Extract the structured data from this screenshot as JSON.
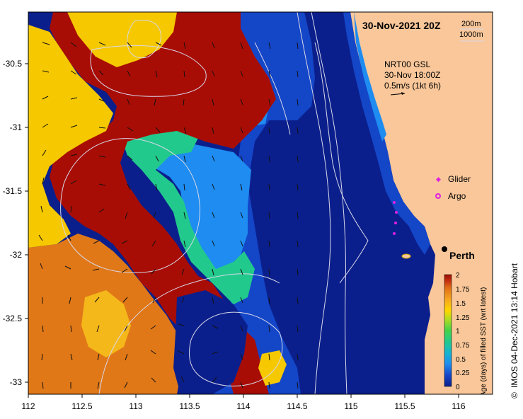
{
  "title": "30-Nov-2021 20Z",
  "contours": [
    "200m",
    "1000m"
  ],
  "current_info": {
    "line1": "NRT00 GSL",
    "line2": "30-Nov 18:00Z",
    "line3": "0.5m/s (1kt 6h)"
  },
  "legend": {
    "glider": "Glider",
    "argo": "Argo"
  },
  "place": "Perth",
  "colorbar": {
    "label": "Age (days) of filled SST (wrt latest)",
    "ticks": [
      "2",
      "1.75",
      "1.5",
      "1.25",
      "1",
      "0.75",
      "0.5",
      "0.25",
      "0"
    ],
    "colors": [
      "#0b1f8c",
      "#1446c8",
      "#1e8cf0",
      "#16b4d0",
      "#22c98c",
      "#43d24a",
      "#b0dc22",
      "#ffd700",
      "#f5a520",
      "#e27016",
      "#c02a0e",
      "#9b0e05"
    ]
  },
  "x_ticks": [
    "112",
    "112.5",
    "113",
    "113.5",
    "114",
    "114.5",
    "115",
    "115.5",
    "116"
  ],
  "y_ticks": [
    "-30.5",
    "-31",
    "-31.5",
    "-32",
    "-32.5",
    "-33"
  ],
  "credit": "IMOS 04-Dec-2021 13:14 Hobart",
  "copyright": "©",
  "colors": {
    "land": "#f9c79a",
    "deep_ocean": "#0b1f8c",
    "dark_red": "#a80d05",
    "yellow": "#f5c800",
    "orange": "#e07818"
  }
}
